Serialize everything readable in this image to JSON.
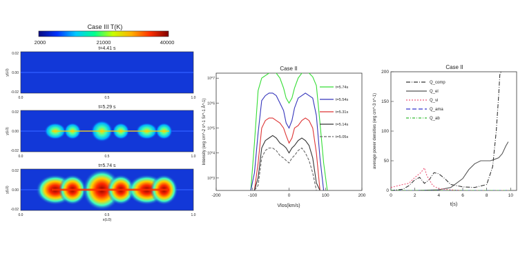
{
  "colorbar": {
    "title": "Case III T(K)",
    "tick_labels": [
      "2000",
      "21000",
      "40000"
    ],
    "colormap": [
      "#0a0a80",
      "#0033ff",
      "#00c8ff",
      "#00ff90",
      "#c8ff00",
      "#ffb000",
      "#ff3000",
      "#800000"
    ]
  },
  "left_panels": {
    "ylabel": "y(L0)",
    "xlabel": "x(L0)",
    "y_tick_labels": [
      "0.02",
      "0.00",
      "-0.02"
    ],
    "x_tick_labels": [
      "0.0",
      "0.5",
      "1.0"
    ],
    "background_color": "#1238d8",
    "panels": [
      {
        "time_label": "t=4.41 s",
        "activity": 0.0
      },
      {
        "time_label": "t=5.29 s",
        "activity": 0.45
      },
      {
        "time_label": "t=5.74 s",
        "activity": 1.0
      }
    ]
  },
  "chart_data": [
    {
      "type": "line",
      "title": "Case II",
      "xlabel": "Vlos(km/s)",
      "ylabel": "Intensity (erg cm^-2 s^-1 Sr^-1 Å^-1)",
      "xlim": [
        -200,
        200
      ],
      "ylim_log10": [
        2.5,
        7.2
      ],
      "x_tick_labels": [
        "-200",
        "-100",
        "0",
        "100",
        "200"
      ],
      "y_tick_labels": [
        "10^7",
        "10^6",
        "10^5",
        "10^4",
        "10^3"
      ],
      "y_tick_values": [
        7,
        6,
        5,
        4,
        3
      ],
      "x": [
        -105,
        -95,
        -85,
        -75,
        -65,
        -55,
        -45,
        -35,
        -25,
        -15,
        -8,
        0,
        8,
        15,
        25,
        35,
        45,
        55,
        65,
        75,
        85,
        95,
        105
      ],
      "series": [
        {
          "name": "t=5.74s",
          "color": "#33dd33",
          "dash": "",
          "log10_values": [
            2.5,
            4.4,
            6.5,
            7.0,
            7.1,
            7.2,
            7.25,
            7.2,
            7.0,
            6.6,
            6.2,
            6.0,
            6.2,
            6.6,
            7.0,
            7.2,
            7.25,
            7.2,
            7.05,
            6.7,
            5.2,
            3.6,
            2.5
          ]
        },
        {
          "name": "t=5.54s",
          "color": "#3333bb",
          "dash": "",
          "log10_values": [
            2.5,
            3.2,
            4.8,
            6.1,
            6.3,
            6.4,
            6.4,
            6.3,
            6.0,
            5.7,
            5.2,
            5.0,
            5.3,
            5.8,
            6.2,
            6.3,
            6.4,
            6.3,
            6.2,
            5.5,
            3.8,
            2.5,
            2.5
          ]
        },
        {
          "name": "t=5.31s",
          "color": "#dd3333",
          "dash": "",
          "log10_values": [
            2.5,
            2.5,
            3.6,
            5.0,
            5.3,
            5.4,
            5.4,
            5.3,
            5.2,
            5.0,
            4.7,
            4.4,
            4.6,
            5.0,
            5.1,
            5.3,
            5.4,
            5.3,
            5.0,
            4.0,
            2.5,
            2.5,
            2.5
          ]
        },
        {
          "name": "t=5.14s",
          "color": "#333333",
          "dash": "",
          "log10_values": [
            2.5,
            2.5,
            3.0,
            4.2,
            4.5,
            4.6,
            4.7,
            4.6,
            4.4,
            4.3,
            4.2,
            4.0,
            4.2,
            4.3,
            4.5,
            4.6,
            4.5,
            4.3,
            3.8,
            2.8,
            2.5,
            2.5,
            2.5
          ]
        },
        {
          "name": "t=5.05s",
          "color": "#666666",
          "dash": "4,2",
          "log10_values": [
            2.5,
            2.5,
            2.7,
            3.8,
            4.1,
            4.2,
            4.2,
            4.1,
            3.9,
            3.8,
            3.7,
            3.6,
            3.8,
            3.9,
            4.1,
            4.2,
            4.0,
            3.7,
            3.2,
            2.5,
            2.5,
            2.5,
            2.5
          ]
        }
      ]
    },
    {
      "type": "line",
      "title": "Case II",
      "xlabel": "t(s)",
      "ylabel": "average power densities (erg cm^-3 s^-1)",
      "xlim": [
        0,
        10.5
      ],
      "ylim": [
        0,
        200
      ],
      "x_tick_labels": [
        "0",
        "2",
        "4",
        "6",
        "8",
        "10"
      ],
      "x_tick_values": [
        0,
        2,
        4,
        6,
        8,
        10
      ],
      "y_tick_labels": [
        "0",
        "50",
        "100",
        "150",
        "200"
      ],
      "y_tick_values": [
        0,
        50,
        100,
        150,
        200
      ],
      "series": [
        {
          "name": "Q_comp",
          "color": "#333333",
          "dash": "6,2,1,2",
          "x": [
            0,
            1.0,
            1.5,
            2.0,
            2.4,
            2.8,
            3.2,
            3.6,
            4.0,
            4.5,
            5.0,
            6.0,
            7.0,
            8.0,
            8.5,
            8.8,
            9.0,
            9.1,
            9.2
          ],
          "y": [
            0,
            2,
            8,
            18,
            22,
            12,
            18,
            30,
            28,
            20,
            10,
            6,
            5,
            10,
            40,
            100,
            160,
            195,
            200
          ]
        },
        {
          "name": "Q_el",
          "color": "#555555",
          "dash": "",
          "x": [
            0,
            2,
            4,
            5,
            6,
            6.5,
            7.0,
            7.5,
            8.0,
            8.3,
            8.6,
            9.0,
            9.3,
            9.6,
            9.8
          ],
          "y": [
            0,
            0,
            1,
            5,
            20,
            35,
            45,
            50,
            50,
            50,
            52,
            55,
            62,
            75,
            82
          ]
        },
        {
          "name": "Q_vi",
          "color": "#ee5577",
          "dash": "2,2",
          "x": [
            0,
            1.0,
            1.5,
            2.0,
            2.5,
            2.8,
            3.0,
            3.5,
            4.0,
            5.0,
            6.0,
            10.0
          ],
          "y": [
            5,
            10,
            12,
            22,
            30,
            38,
            25,
            8,
            3,
            1,
            0,
            0
          ]
        },
        {
          "name": "Q_ama",
          "color": "#3333cc",
          "dash": "6,3",
          "x": [
            0,
            10.0
          ],
          "y": [
            0,
            0
          ]
        },
        {
          "name": "Q_ab",
          "color": "#33bb33",
          "dash": "4,2,1,2",
          "x": [
            0,
            10.0
          ],
          "y": [
            0,
            0
          ]
        }
      ]
    }
  ]
}
